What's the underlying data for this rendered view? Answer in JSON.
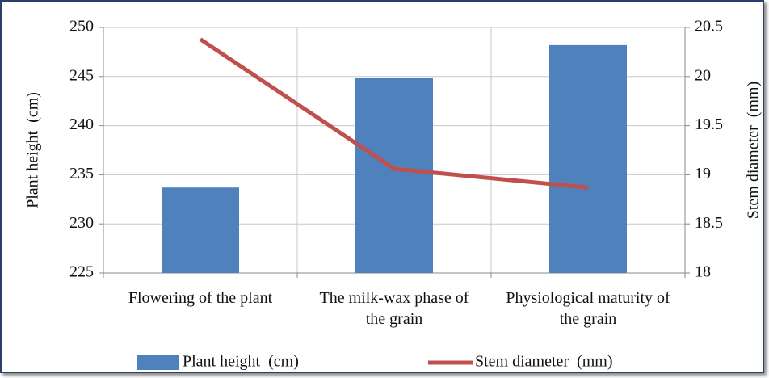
{
  "chart_data": {
    "type": "bar-line",
    "categories": [
      "Flowering of the plant",
      "The milk-wax phase of the grain",
      "Physiological maturity of the grain"
    ],
    "series": [
      {
        "name": "Plant height  (cm)",
        "type": "bar",
        "color": "#4f81bd",
        "values": [
          233.7,
          244.9,
          248.2
        ]
      },
      {
        "name": "Stem diameter  (mm)",
        "type": "line",
        "color": "#c0504d",
        "axis": "y2",
        "values": [
          20.38,
          19.06,
          18.87
        ]
      }
    ],
    "ylabel": "Plant height  (cm)",
    "y2label": "Stem diameter  (mm)",
    "ylim": [
      225,
      250
    ],
    "yticks": [
      225,
      230,
      235,
      240,
      245,
      250
    ],
    "y2lim": [
      18,
      20.5
    ],
    "y2ticks": [
      18,
      18.5,
      19,
      19.5,
      20,
      20.5
    ],
    "grid": true,
    "legend": "bottom"
  }
}
